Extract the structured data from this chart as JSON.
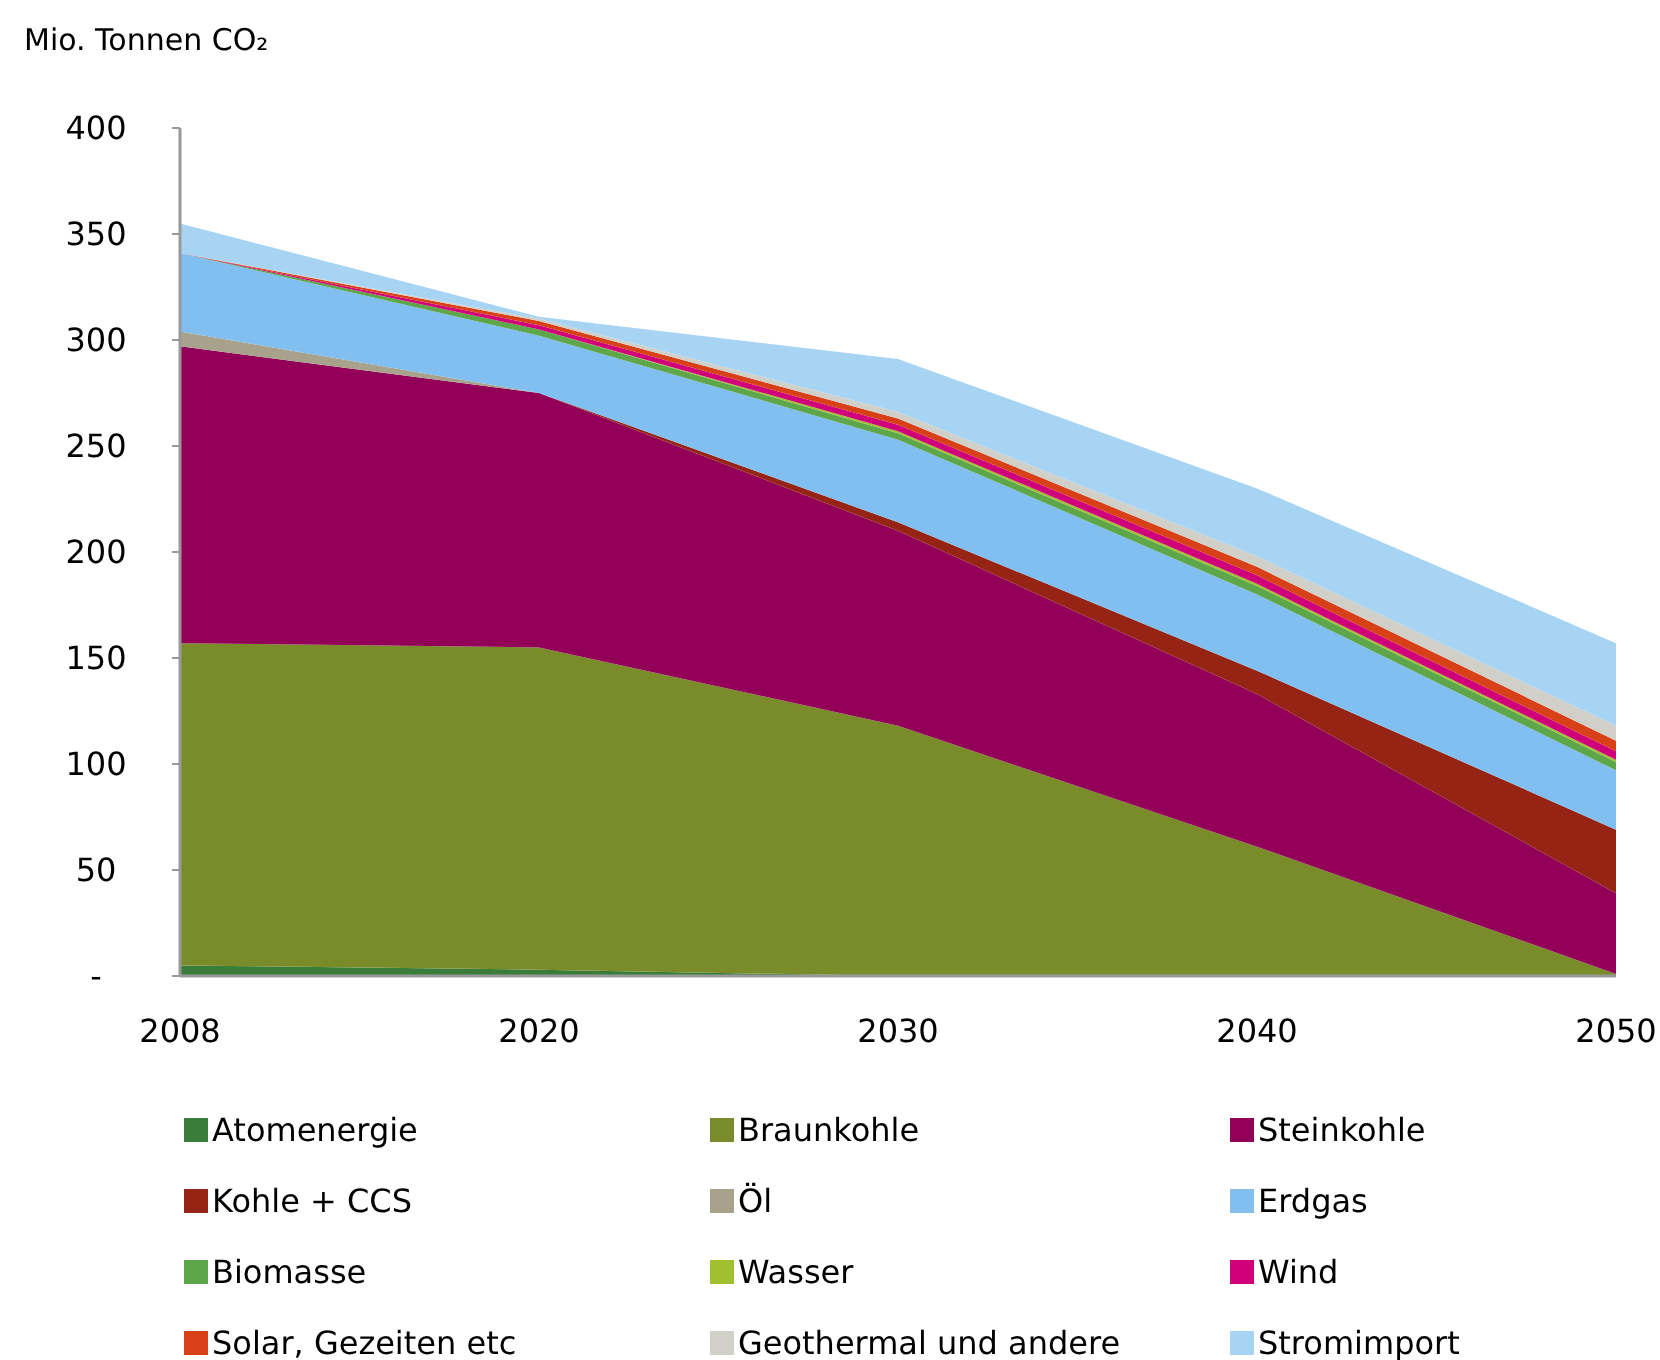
{
  "chart_data": {
    "type": "area",
    "stacked": true,
    "ylabel": "Mio. Tonnen CO₂",
    "categories": [
      "2008",
      "2020",
      "2030",
      "2040",
      "2050"
    ],
    "ylim": [
      0,
      400
    ],
    "yticks": [
      {
        "value": 0,
        "label": "-"
      },
      50,
      100,
      150,
      200,
      250,
      300,
      350,
      400
    ],
    "grid": false,
    "legend": "bottom",
    "series": [
      {
        "name": "Atomenergie",
        "color": "#3a7d3a",
        "values": [
          5,
          3,
          0,
          0,
          0
        ]
      },
      {
        "name": "Braunkohle",
        "color": "#7a8c2a",
        "values": [
          152,
          152,
          118,
          61,
          1
        ]
      },
      {
        "name": "Steinkohle",
        "color": "#930058",
        "values": [
          140,
          120,
          92,
          72,
          38
        ]
      },
      {
        "name": "Kohle + CCS",
        "color": "#952414",
        "values": [
          0,
          0,
          4,
          11,
          30
        ]
      },
      {
        "name": "Öl",
        "color": "#a8a28c",
        "values": [
          7,
          0,
          0,
          0,
          0
        ]
      },
      {
        "name": "Erdgas",
        "color": "#80bff0",
        "values": [
          37,
          27,
          39,
          36,
          28
        ]
      },
      {
        "name": "Biomasse",
        "color": "#5ea64a",
        "values": [
          0,
          3,
          3,
          4,
          4
        ]
      },
      {
        "name": "Wasser",
        "color": "#a0c030",
        "values": [
          0,
          0,
          1,
          1,
          1
        ]
      },
      {
        "name": "Wind",
        "color": "#d0007a",
        "values": [
          0,
          2,
          3,
          4,
          4
        ]
      },
      {
        "name": "Solar, Gezeiten etc",
        "color": "#d84018",
        "values": [
          0,
          2,
          3,
          4,
          5
        ]
      },
      {
        "name": "Geothermal und andere",
        "color": "#d0d0c8",
        "values": [
          0,
          1,
          3,
          5,
          7
        ]
      },
      {
        "name": "Stromimport",
        "color": "#a8d4f4",
        "values": [
          14,
          1,
          25,
          32,
          39
        ]
      }
    ]
  }
}
